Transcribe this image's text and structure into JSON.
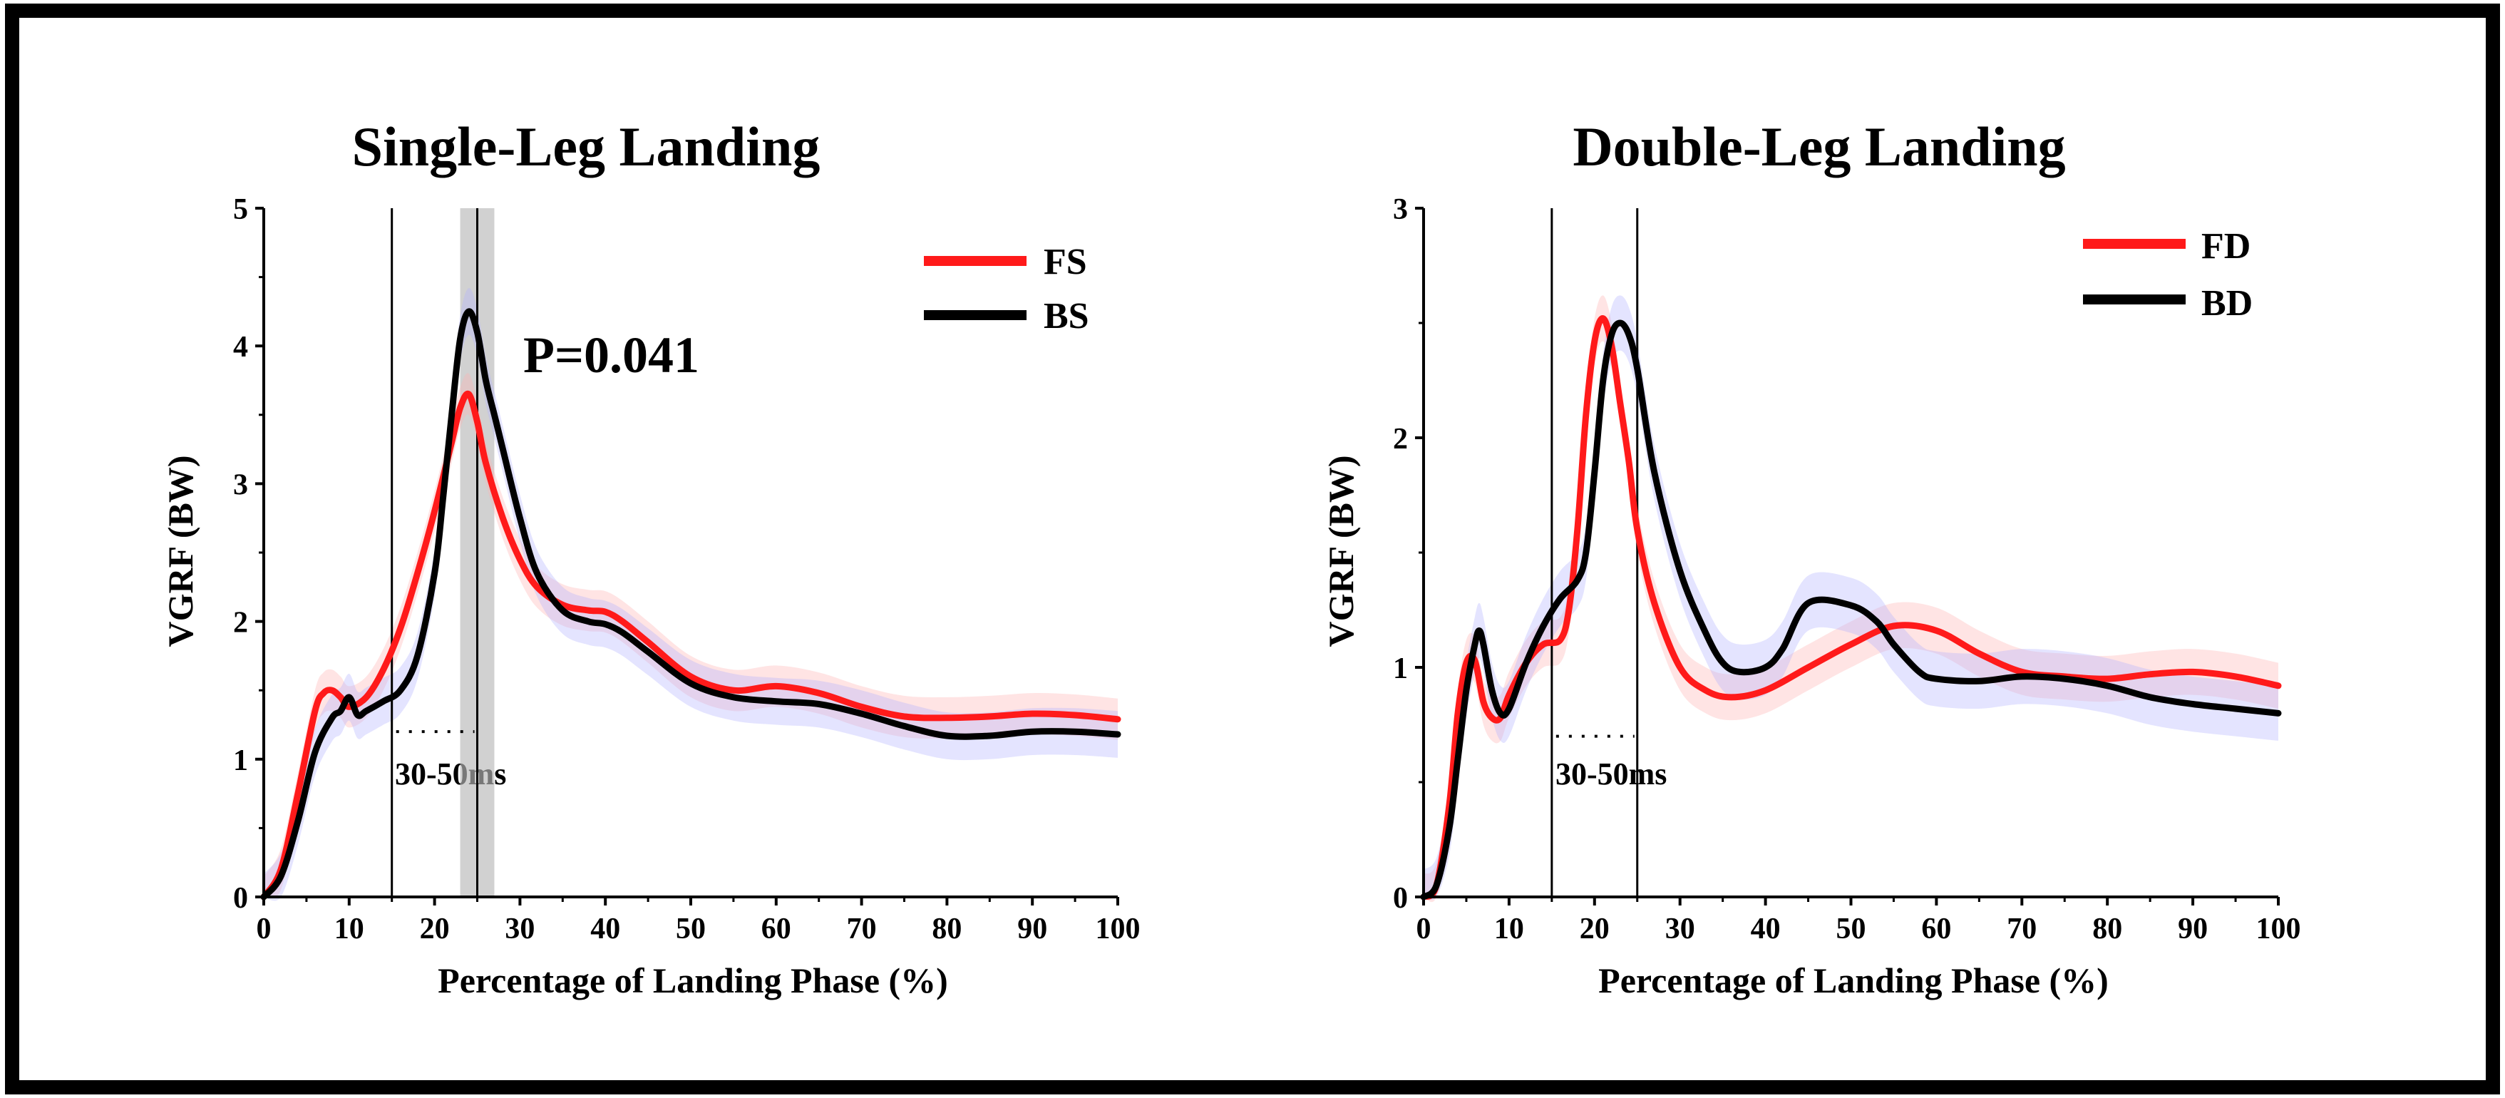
{
  "chart_data": [
    {
      "type": "line",
      "title": "Single-Leg Landing",
      "xlabel": "Percentage of Landing Phase (%)",
      "ylabel": "VGRF  (BW)",
      "xlim": [
        0,
        100
      ],
      "ylim": [
        0,
        5
      ],
      "xticks": [
        0,
        10,
        20,
        30,
        40,
        50,
        60,
        70,
        80,
        90,
        100
      ],
      "yticks": [
        0,
        1,
        2,
        3,
        4,
        5
      ],
      "grid": false,
      "legend_position": "top-right",
      "vlines": [
        15,
        25
      ],
      "shaded_region": [
        23,
        27
      ],
      "window_label": "30-50ms",
      "window_dotted_y": 1.2,
      "annotation": "P=0.041",
      "annotation_position": [
        30,
        3.95
      ],
      "series": [
        {
          "name": "FS",
          "color": "#ff1a1a",
          "x": [
            0,
            2,
            4,
            6,
            7,
            8,
            9,
            10,
            12,
            14,
            16,
            18,
            20,
            22,
            23,
            24,
            25,
            26,
            28,
            30,
            32,
            35,
            38,
            40,
            42,
            45,
            50,
            55,
            60,
            65,
            70,
            75,
            80,
            85,
            90,
            95,
            100
          ],
          "values": [
            0,
            0.2,
            0.75,
            1.35,
            1.48,
            1.5,
            1.45,
            1.38,
            1.45,
            1.65,
            1.95,
            2.35,
            2.8,
            3.3,
            3.55,
            3.65,
            3.45,
            3.15,
            2.75,
            2.45,
            2.25,
            2.12,
            2.08,
            2.07,
            2.0,
            1.85,
            1.6,
            1.5,
            1.53,
            1.48,
            1.38,
            1.31,
            1.3,
            1.31,
            1.33,
            1.32,
            1.29
          ],
          "band": 0.15
        },
        {
          "name": "BS",
          "color": "#000000",
          "x": [
            0,
            2,
            4,
            6,
            8,
            9,
            10,
            11,
            12,
            14,
            16,
            18,
            20,
            21,
            22,
            23,
            24,
            25,
            26,
            27,
            28,
            30,
            32,
            35,
            38,
            40,
            42,
            45,
            50,
            55,
            60,
            65,
            70,
            75,
            80,
            85,
            90,
            95,
            100
          ],
          "values": [
            0,
            0.15,
            0.55,
            1.05,
            1.3,
            1.35,
            1.45,
            1.32,
            1.35,
            1.42,
            1.5,
            1.75,
            2.35,
            2.9,
            3.5,
            4.05,
            4.25,
            4.1,
            3.75,
            3.5,
            3.25,
            2.75,
            2.35,
            2.08,
            2.0,
            1.98,
            1.92,
            1.78,
            1.55,
            1.45,
            1.42,
            1.4,
            1.33,
            1.24,
            1.17,
            1.17,
            1.2,
            1.2,
            1.18
          ],
          "band": 0.17
        }
      ]
    },
    {
      "type": "line",
      "title": "Double-Leg Landing",
      "xlabel": "Percentage of Landing Phase (%)",
      "ylabel": "VGRF  (BW)",
      "xlim": [
        0,
        100
      ],
      "ylim": [
        0,
        3
      ],
      "xticks": [
        0,
        10,
        20,
        30,
        40,
        50,
        60,
        70,
        80,
        90,
        100
      ],
      "yticks": [
        0,
        1,
        2,
        3
      ],
      "grid": false,
      "legend_position": "top-right",
      "vlines": [
        15,
        25
      ],
      "window_label": "30-50ms",
      "window_dotted_y": 0.7,
      "series": [
        {
          "name": "FD",
          "color": "#ff1a1a",
          "x": [
            0,
            1.5,
            3,
            4,
            5,
            6,
            7,
            8,
            9,
            10,
            12,
            14,
            16,
            17,
            18,
            19,
            20,
            21,
            22,
            23,
            24,
            25,
            27,
            30,
            33,
            36,
            40,
            45,
            50,
            55,
            60,
            65,
            70,
            75,
            80,
            85,
            90,
            95,
            100
          ],
          "values": [
            0,
            0.05,
            0.4,
            0.8,
            1.02,
            1.03,
            0.85,
            0.78,
            0.78,
            0.88,
            1.02,
            1.1,
            1.12,
            1.25,
            1.6,
            2.1,
            2.42,
            2.52,
            2.4,
            2.15,
            1.9,
            1.6,
            1.28,
            1.0,
            0.9,
            0.87,
            0.9,
            1.0,
            1.1,
            1.18,
            1.16,
            1.06,
            0.98,
            0.96,
            0.95,
            0.97,
            0.98,
            0.96,
            0.92
          ],
          "band": 0.1
        },
        {
          "name": "BD",
          "color": "#000000",
          "x": [
            0,
            1.5,
            3,
            4,
            5,
            6,
            6.5,
            7,
            8,
            9,
            10,
            12,
            14,
            16,
            18,
            19,
            20,
            21,
            22,
            23,
            24,
            25,
            27,
            30,
            33,
            35,
            37,
            40,
            42,
            45,
            50,
            53,
            55,
            58,
            60,
            65,
            70,
            75,
            80,
            85,
            90,
            95,
            100
          ],
          "values": [
            0,
            0.05,
            0.3,
            0.6,
            0.9,
            1.1,
            1.16,
            1.1,
            0.9,
            0.8,
            0.82,
            1.02,
            1.18,
            1.3,
            1.38,
            1.5,
            1.85,
            2.25,
            2.45,
            2.5,
            2.45,
            2.3,
            1.85,
            1.42,
            1.15,
            1.02,
            0.98,
            1.0,
            1.08,
            1.28,
            1.27,
            1.2,
            1.1,
            0.98,
            0.95,
            0.94,
            0.96,
            0.95,
            0.92,
            0.87,
            0.84,
            0.82,
            0.8
          ],
          "band": 0.12
        }
      ]
    }
  ]
}
